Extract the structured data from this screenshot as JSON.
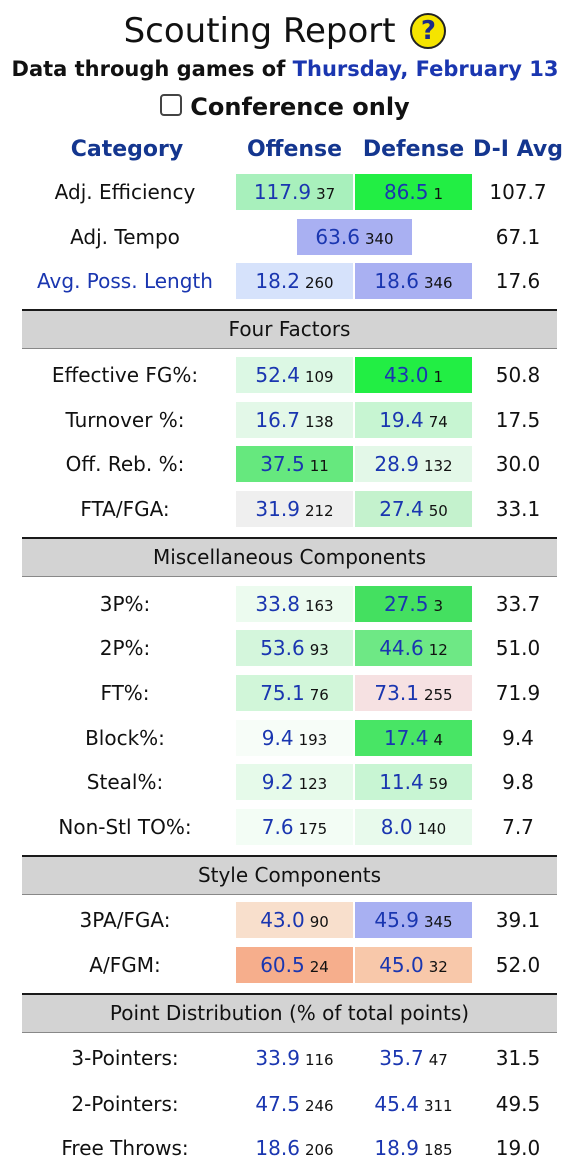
{
  "title": "Scouting Report",
  "help_icon_label": "?",
  "subtitle_prefix": "Data through games of ",
  "subtitle_date": "Thursday, February 13",
  "conference_only_label": "Conference only",
  "headers": {
    "category": "Category",
    "offense": "Offense",
    "defense": "Defense",
    "davg": "D-I Avg"
  },
  "top_rows": [
    {
      "label": "Adj. Efficiency",
      "off": "117.9",
      "off_rank": "37",
      "def": "86.5",
      "def_rank": "1",
      "avg": "107.7",
      "off_bg": "#a8f0bc",
      "def_bg": "#22ee44"
    },
    {
      "label": "Adj. Tempo",
      "combined": "63.6",
      "combined_rank": "340",
      "avg": "67.1",
      "combined_bg": "#a9b0f2"
    },
    {
      "label": "Avg. Poss. Length",
      "off": "18.2",
      "off_rank": "260",
      "def": "18.6",
      "def_rank": "346",
      "avg": "17.6",
      "off_bg": "#d6e2fb",
      "def_bg": "#a9b0f2",
      "label_link": true
    }
  ],
  "sections": {
    "four_factors": "Four Factors",
    "misc": "Miscellaneous Components",
    "style": "Style Components",
    "points": "Point Distribution (% of total points)"
  },
  "four_factors_rows": [
    {
      "label": "Effective FG%:",
      "off": "52.4",
      "off_rank": "109",
      "def": "43.0",
      "def_rank": "1",
      "avg": "50.8",
      "off_bg": "#dcf8e4",
      "def_bg": "#22ee44"
    },
    {
      "label": "Turnover %:",
      "off": "16.7",
      "off_rank": "138",
      "def": "19.4",
      "def_rank": "74",
      "avg": "17.5",
      "off_bg": "#e3f8e8",
      "def_bg": "#c7f5d2"
    },
    {
      "label": "Off. Reb. %:",
      "off": "37.5",
      "off_rank": "11",
      "def": "28.9",
      "def_rank": "132",
      "avg": "30.0",
      "off_bg": "#66e87e",
      "def_bg": "#e3f8e8"
    },
    {
      "label": "FTA/FGA:",
      "off": "31.9",
      "off_rank": "212",
      "def": "27.4",
      "def_rank": "50",
      "avg": "33.1",
      "off_bg": "#efefef",
      "def_bg": "#c4f2cd"
    }
  ],
  "misc_rows": [
    {
      "label": "3P%:",
      "off": "33.8",
      "off_rank": "163",
      "def": "27.5",
      "def_rank": "3",
      "avg": "33.7",
      "off_bg": "#ecfbef",
      "def_bg": "#44e060"
    },
    {
      "label": "2P%:",
      "off": "53.6",
      "off_rank": "93",
      "def": "44.6",
      "def_rank": "12",
      "avg": "51.0",
      "off_bg": "#d4f6dc",
      "def_bg": "#6ee885"
    },
    {
      "label": "FT%:",
      "off": "75.1",
      "off_rank": "76",
      "def": "73.1",
      "def_rank": "255",
      "avg": "71.9",
      "off_bg": "#d1f6d9",
      "def_bg": "#f6e1e2"
    },
    {
      "label": "Block%:",
      "off": "9.4",
      "off_rank": "193",
      "def": "17.4",
      "def_rank": "4",
      "avg": "9.4",
      "off_bg": "#f7fdf8",
      "def_bg": "#48e565"
    },
    {
      "label": "Steal%:",
      "off": "9.2",
      "off_rank": "123",
      "def": "11.4",
      "def_rank": "59",
      "avg": "9.8",
      "off_bg": "#e6faea",
      "def_bg": "#c8f5d3"
    },
    {
      "label": "Non-Stl TO%:",
      "off": "7.6",
      "off_rank": "175",
      "def": "8.0",
      "def_rank": "140",
      "avg": "7.7",
      "off_bg": "#f3fdf5",
      "def_bg": "#e8faec"
    }
  ],
  "style_rows": [
    {
      "label": "3PA/FGA:",
      "off": "43.0",
      "off_rank": "90",
      "def": "45.9",
      "def_rank": "345",
      "avg": "39.1",
      "off_bg": "#f8dfcc",
      "def_bg": "#a8b0f2"
    },
    {
      "label": "A/FGM:",
      "off": "60.5",
      "off_rank": "24",
      "def": "45.0",
      "def_rank": "32",
      "avg": "52.0",
      "off_bg": "#f6ae8c",
      "def_bg": "#f8c8aa"
    }
  ],
  "points_rows": [
    {
      "label": "3-Pointers:",
      "off": "33.9",
      "off_rank": "116",
      "def": "35.7",
      "def_rank": "47",
      "avg": "31.5"
    },
    {
      "label": "2-Pointers:",
      "off": "47.5",
      "off_rank": "246",
      "def": "45.4",
      "def_rank": "311",
      "avg": "49.5"
    },
    {
      "label": "Free Throws:",
      "off": "18.6",
      "off_rank": "206",
      "def": "18.9",
      "def_rank": "185",
      "avg": "19.0"
    }
  ]
}
